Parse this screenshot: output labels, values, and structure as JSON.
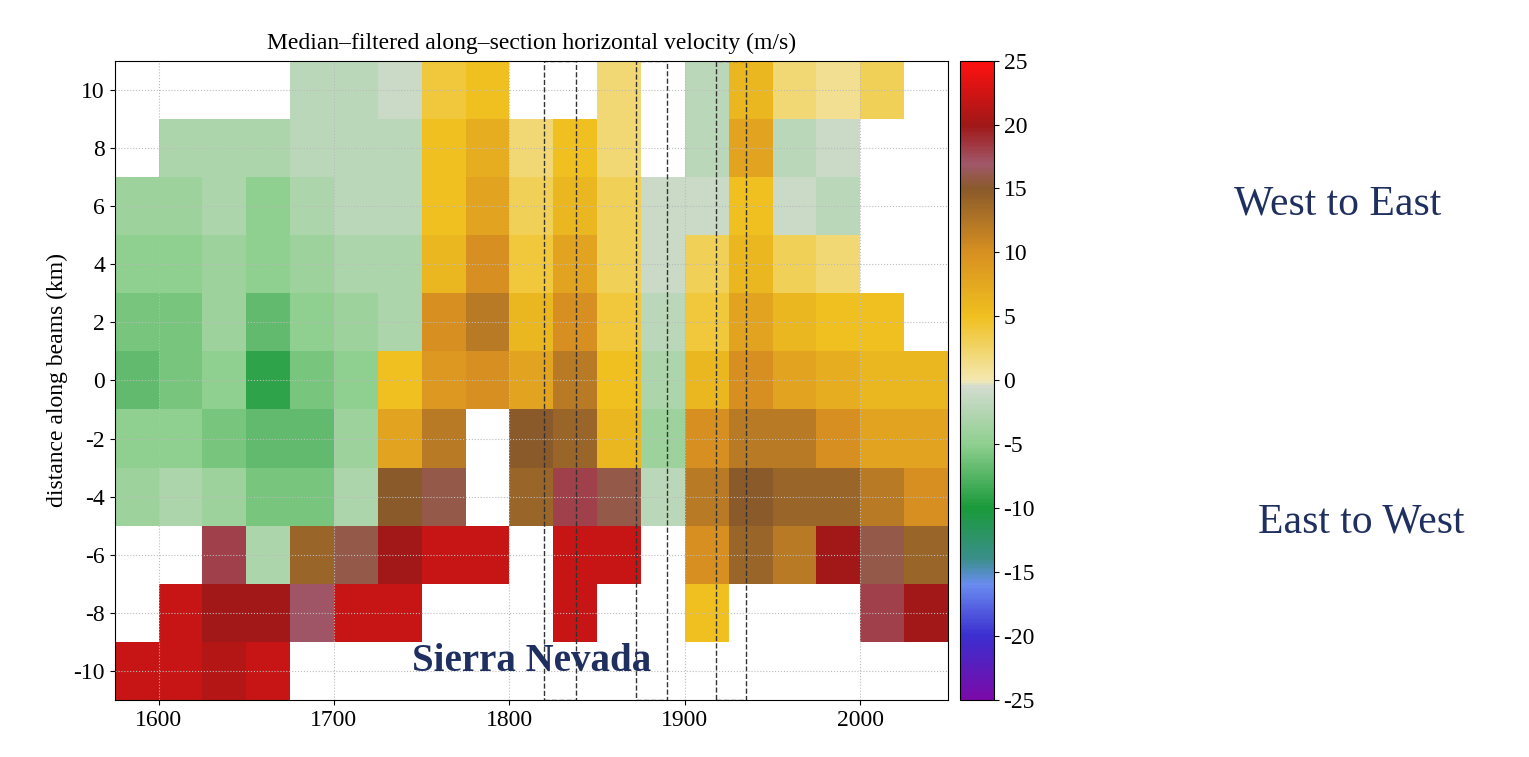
{
  "chart_data": {
    "type": "heatmap",
    "title": "Median–filtered along–section horizontal velocity (m/s)",
    "y_label": "distance along beams (km)",
    "annotations": [
      "West to East",
      "East to West",
      "Sierra Nevada"
    ],
    "x_edges": [
      1575,
      1600,
      1625,
      1650,
      1675,
      1700,
      1725,
      1750,
      1775,
      1800,
      1825,
      1850,
      1875,
      1900,
      1925,
      1950,
      1975,
      2000,
      2025,
      2050
    ],
    "y_edges": [
      -11,
      -9,
      -7,
      -5,
      -3,
      -1,
      1,
      3,
      5,
      7,
      9,
      11
    ],
    "cells": [
      [
        22,
        22,
        21,
        22,
        null,
        null,
        null,
        null,
        null,
        null,
        null,
        null,
        null,
        null,
        null,
        null,
        null,
        null,
        null
      ],
      [
        null,
        22,
        20,
        20,
        17,
        22,
        22,
        null,
        null,
        null,
        22,
        null,
        null,
        5,
        null,
        null,
        null,
        18,
        20
      ],
      [
        null,
        null,
        18,
        -3,
        14,
        16,
        20,
        22,
        22,
        null,
        22,
        22,
        null,
        10,
        14,
        12,
        20,
        16,
        14
      ],
      [
        -4,
        -3,
        -4,
        -6,
        -6,
        -3,
        15,
        16,
        null,
        14,
        18,
        16,
        -2,
        12,
        15,
        14,
        14,
        12,
        10
      ],
      [
        -5,
        -5,
        -6,
        -7,
        -7,
        -4,
        8,
        12,
        null,
        15,
        14,
        6,
        -4,
        10,
        12,
        12,
        10,
        8,
        8
      ],
      [
        -7,
        -6,
        -5,
        -9,
        -6,
        -5,
        5,
        9,
        10,
        8,
        12,
        5,
        -3,
        6,
        10,
        8,
        7,
        6,
        6
      ],
      [
        -6,
        -6,
        -4,
        -7,
        -5,
        -4,
        -3,
        10,
        12,
        6,
        10,
        4,
        -2,
        4,
        8,
        6,
        5,
        5,
        null
      ],
      [
        -5,
        -5,
        -4,
        -5,
        -4,
        -3,
        -3,
        6,
        10,
        4,
        8,
        3,
        -1,
        3,
        6,
        3,
        2,
        null,
        null
      ],
      [
        -4,
        -4,
        -3,
        -5,
        -3,
        -2,
        -2,
        5,
        8,
        3,
        6,
        3,
        -1,
        -1,
        5,
        -1,
        -2,
        null,
        null
      ],
      [
        null,
        -3,
        -3,
        -3,
        -2,
        -2,
        -2,
        5,
        7,
        2,
        5,
        2,
        null,
        -2,
        8,
        -2,
        -1,
        null,
        null
      ],
      [
        null,
        null,
        null,
        null,
        -2,
        -2,
        -1,
        4,
        5,
        null,
        null,
        2,
        null,
        -2,
        6,
        2,
        1,
        3,
        null
      ]
    ],
    "highlight_x_ranges": [
      [
        1820,
        1838
      ],
      [
        1872,
        1890
      ],
      [
        1918,
        1935
      ]
    ],
    "xlim": [
      1575,
      2050
    ],
    "ylim": [
      -11,
      11
    ],
    "xticks": [
      1600,
      1700,
      1800,
      1900,
      2000
    ],
    "yticks": [
      -10,
      -8,
      -6,
      -4,
      -2,
      0,
      2,
      4,
      6,
      8,
      10
    ],
    "colorbar_range": [
      -25,
      25
    ],
    "colorbar_ticks": [
      -25,
      -20,
      -15,
      -10,
      -5,
      0,
      5,
      10,
      15,
      20,
      25
    ],
    "grid": true
  }
}
